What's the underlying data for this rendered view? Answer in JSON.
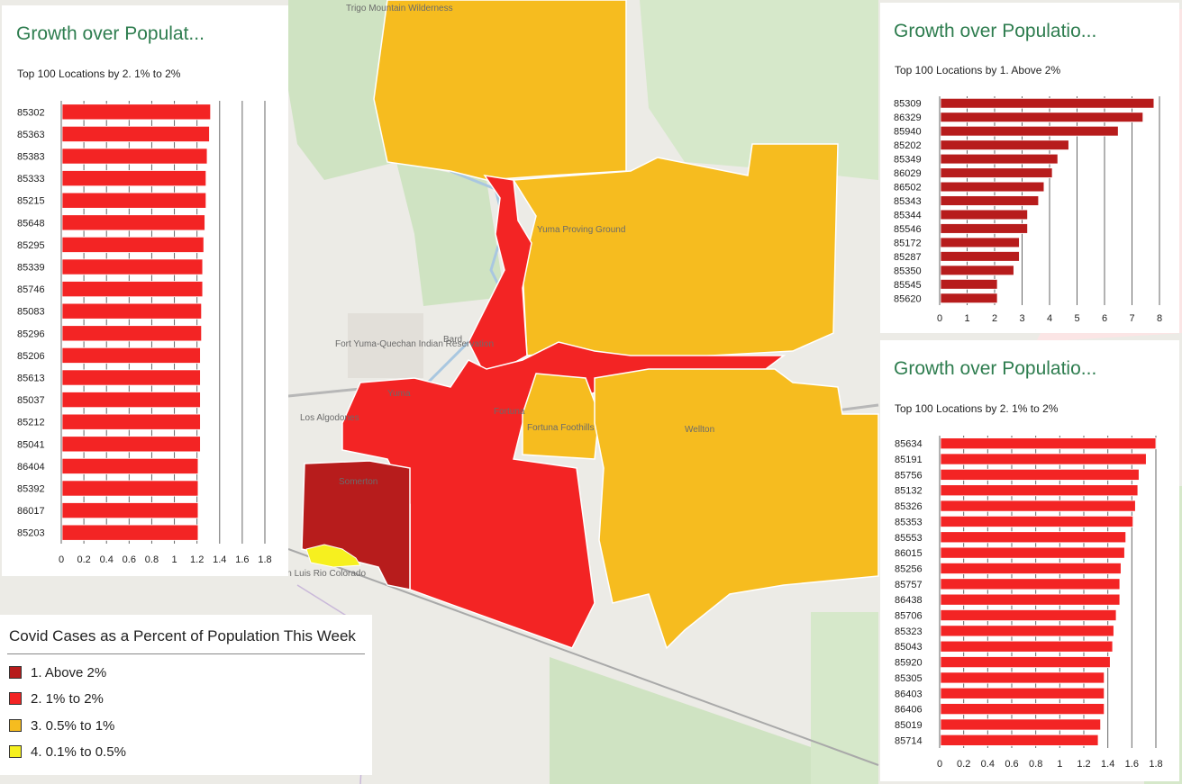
{
  "map": {
    "place_labels": [
      "Fort Yuma-Quechan Indian Reservation",
      "Bard",
      "Yuma",
      "Los Algodones",
      "Somerton",
      "San Luis Rio Colorado",
      "Fortuna",
      "Fortuna Foothills",
      "Wellton",
      "Yuma Proving Ground",
      "Trigo Mountain Wilderness"
    ],
    "colors": {
      "above_2": "#b71c1c",
      "one_to_2": "#f32424",
      "half_to_1": "#f6bc1f",
      "tenth_to_half": "#f6f01f"
    }
  },
  "panels": {
    "left": {
      "title": "Growth over Populat...",
      "subtitle": "Top 100 Locations  by 2. 1% to 2%"
    },
    "top_right": {
      "title": "Growth over Populatio...",
      "subtitle": "Top 100 Locations  by 1. Above 2%"
    },
    "bottom_right": {
      "title": "Growth over Populatio...",
      "subtitle": "Top 100 Locations  by 2. 1% to 2%"
    }
  },
  "legend": {
    "title": "Covid Cases as a Percent of Population This Week",
    "items": [
      {
        "label": "1. Above 2%",
        "color": "#b71c1c"
      },
      {
        "label": "2. 1% to 2%",
        "color": "#f32424"
      },
      {
        "label": "3.  0.5% to 1%",
        "color": "#f6bc1f"
      },
      {
        "label": "4.  0.1% to 0.5%",
        "color": "#f6f01f"
      }
    ]
  },
  "chart_data": [
    {
      "id": "left",
      "type": "bar",
      "orientation": "horizontal",
      "title": "Growth over Populat...",
      "subtitle": "Top 100 Locations  by 2. 1% to 2%",
      "color": "#f32424",
      "categories": [
        "85302",
        "85363",
        "85383",
        "85333",
        "85215",
        "85648",
        "85295",
        "85339",
        "85746",
        "85083",
        "85296",
        "85206",
        "85613",
        "85037",
        "85212",
        "85041",
        "86404",
        "85392",
        "86017",
        "85203"
      ],
      "values": [
        1.32,
        1.31,
        1.29,
        1.28,
        1.28,
        1.27,
        1.26,
        1.25,
        1.25,
        1.24,
        1.24,
        1.23,
        1.23,
        1.23,
        1.23,
        1.23,
        1.21,
        1.21,
        1.21,
        1.21
      ],
      "xticks": [
        "0",
        "0.2",
        "0.4",
        "0.6",
        "0.8",
        "1",
        "1.2",
        "1.4",
        "1.6",
        "1.8"
      ],
      "xlim": [
        0,
        1.8
      ],
      "grid": true
    },
    {
      "id": "top_right",
      "type": "bar",
      "orientation": "horizontal",
      "title": "Growth over Populatio...",
      "subtitle": "Top 100 Locations  by 1. Above 2%",
      "color": "#b71c1c",
      "categories": [
        "85309",
        "86329",
        "85940",
        "85202",
        "85349",
        "86029",
        "86502",
        "85343",
        "85344",
        "85546",
        "85172",
        "85287",
        "85350",
        "85545",
        "85620"
      ],
      "values": [
        7.8,
        7.4,
        6.5,
        4.7,
        4.3,
        4.1,
        3.8,
        3.6,
        3.2,
        3.2,
        2.9,
        2.9,
        2.7,
        2.1,
        2.1
      ],
      "xticks": [
        "0",
        "1",
        "2",
        "3",
        "4",
        "5",
        "6",
        "7",
        "8"
      ],
      "xlim": [
        0,
        8
      ],
      "grid": true
    },
    {
      "id": "bottom_right",
      "type": "bar",
      "orientation": "horizontal",
      "title": "Growth over Populatio...",
      "subtitle": "Top 100 Locations  by 2. 1% to 2%",
      "color": "#f32424",
      "categories": [
        "85634",
        "85191",
        "85756",
        "85132",
        "85326",
        "85353",
        "85553",
        "86015",
        "85256",
        "85757",
        "86438",
        "85706",
        "85323",
        "85043",
        "85920",
        "85305",
        "86403",
        "86406",
        "85019",
        "85714"
      ],
      "values": [
        1.8,
        1.72,
        1.66,
        1.65,
        1.63,
        1.61,
        1.55,
        1.54,
        1.51,
        1.5,
        1.5,
        1.47,
        1.45,
        1.44,
        1.42,
        1.37,
        1.37,
        1.37,
        1.34,
        1.32
      ],
      "xticks": [
        "0",
        "0.2",
        "0.4",
        "0.6",
        "0.8",
        "1",
        "1.2",
        "1.4",
        "1.6",
        "1.8"
      ],
      "xlim": [
        0,
        1.8
      ],
      "grid": true
    }
  ]
}
